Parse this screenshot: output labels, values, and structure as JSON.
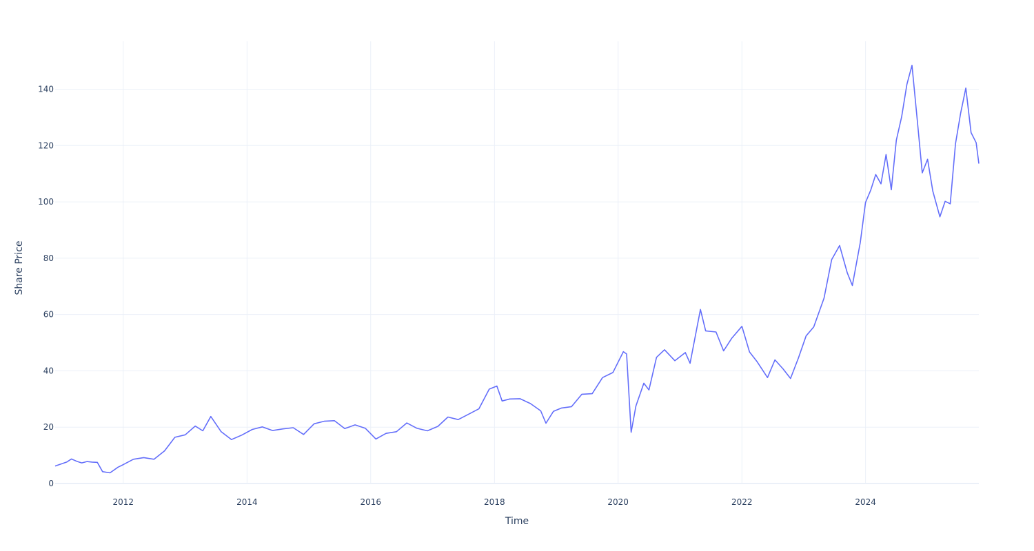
{
  "chart_data": {
    "type": "line",
    "title": "",
    "xlabel": "Time",
    "ylabel": "Share Price",
    "x_ticks": [
      "2012",
      "2014",
      "2016",
      "2018",
      "2020",
      "2022",
      "2024"
    ],
    "y_ticks": [
      0,
      20,
      40,
      60,
      80,
      100,
      120,
      140
    ],
    "xlim": [
      "2010-11-25",
      "2025-10-31"
    ],
    "ylim": [
      0,
      157
    ],
    "grid": true,
    "line_color": "#636efa",
    "series": [
      {
        "values": [
          [
            "2010-11-25",
            6.2
          ],
          [
            "2011-02-01",
            7.6
          ],
          [
            "2011-03-01",
            8.7
          ],
          [
            "2011-04-01",
            7.9
          ],
          [
            "2011-05-01",
            7.3
          ],
          [
            "2011-06-01",
            7.8
          ],
          [
            "2011-07-01",
            7.6
          ],
          [
            "2011-08-01",
            7.5
          ],
          [
            "2011-09-01",
            4.2
          ],
          [
            "2011-10-15",
            3.8
          ],
          [
            "2011-12-01",
            5.8
          ],
          [
            "2012-01-01",
            6.7
          ],
          [
            "2012-03-01",
            8.6
          ],
          [
            "2012-05-01",
            9.2
          ],
          [
            "2012-07-01",
            8.6
          ],
          [
            "2012-09-01",
            11.6
          ],
          [
            "2012-11-01",
            16.4
          ],
          [
            "2013-01-01",
            17.3
          ],
          [
            "2013-03-01",
            20.4
          ],
          [
            "2013-04-15",
            18.7
          ],
          [
            "2013-06-01",
            23.8
          ],
          [
            "2013-08-01",
            18.4
          ],
          [
            "2013-10-01",
            15.6
          ],
          [
            "2013-12-01",
            17.2
          ],
          [
            "2014-02-01",
            19.2
          ],
          [
            "2014-04-01",
            20.1
          ],
          [
            "2014-06-01",
            18.8
          ],
          [
            "2014-08-01",
            19.4
          ],
          [
            "2014-10-01",
            19.8
          ],
          [
            "2014-12-01",
            17.4
          ],
          [
            "2015-02-01",
            21.2
          ],
          [
            "2015-04-01",
            22.1
          ],
          [
            "2015-06-01",
            22.3
          ],
          [
            "2015-08-01",
            19.5
          ],
          [
            "2015-10-01",
            20.8
          ],
          [
            "2015-12-01",
            19.6
          ],
          [
            "2016-02-01",
            15.8
          ],
          [
            "2016-04-01",
            17.8
          ],
          [
            "2016-06-01",
            18.4
          ],
          [
            "2016-08-01",
            21.5
          ],
          [
            "2016-10-01",
            19.6
          ],
          [
            "2016-12-01",
            18.7
          ],
          [
            "2017-02-01",
            20.3
          ],
          [
            "2017-04-01",
            23.6
          ],
          [
            "2017-06-01",
            22.7
          ],
          [
            "2017-08-01",
            24.6
          ],
          [
            "2017-10-01",
            26.5
          ],
          [
            "2017-12-01",
            33.5
          ],
          [
            "2018-01-15",
            34.6
          ],
          [
            "2018-02-15",
            29.3
          ],
          [
            "2018-04-01",
            30.0
          ],
          [
            "2018-06-01",
            30.1
          ],
          [
            "2018-08-01",
            28.4
          ],
          [
            "2018-10-01",
            25.8
          ],
          [
            "2018-11-01",
            21.4
          ],
          [
            "2018-12-15",
            25.6
          ],
          [
            "2019-02-01",
            26.8
          ],
          [
            "2019-04-01",
            27.3
          ],
          [
            "2019-06-01",
            31.7
          ],
          [
            "2019-08-01",
            31.9
          ],
          [
            "2019-10-01",
            37.6
          ],
          [
            "2019-12-01",
            39.4
          ],
          [
            "2020-02-01",
            46.8
          ],
          [
            "2020-02-20",
            46.0
          ],
          [
            "2020-03-18",
            18.2
          ],
          [
            "2020-04-15",
            27.5
          ],
          [
            "2020-06-01",
            35.6
          ],
          [
            "2020-07-01",
            33.2
          ],
          [
            "2020-08-15",
            44.8
          ],
          [
            "2020-10-01",
            47.5
          ],
          [
            "2020-12-01",
            43.6
          ],
          [
            "2021-02-01",
            46.5
          ],
          [
            "2021-03-01",
            42.7
          ],
          [
            "2021-05-01",
            61.8
          ],
          [
            "2021-06-01",
            54.2
          ],
          [
            "2021-08-01",
            53.8
          ],
          [
            "2021-09-15",
            47.1
          ],
          [
            "2021-11-01",
            51.5
          ],
          [
            "2022-01-01",
            55.8
          ],
          [
            "2022-02-15",
            46.7
          ],
          [
            "2022-04-01",
            43.2
          ],
          [
            "2022-06-01",
            37.6
          ],
          [
            "2022-07-15",
            43.9
          ],
          [
            "2022-09-01",
            40.7
          ],
          [
            "2022-10-15",
            37.3
          ],
          [
            "2022-12-01",
            44.6
          ],
          [
            "2023-01-15",
            52.4
          ],
          [
            "2023-03-01",
            55.6
          ],
          [
            "2023-05-01",
            65.8
          ],
          [
            "2023-06-15",
            79.5
          ],
          [
            "2023-08-01",
            84.5
          ],
          [
            "2023-09-15",
            74.8
          ],
          [
            "2023-10-15",
            70.3
          ],
          [
            "2023-12-01",
            85.6
          ],
          [
            "2024-01-01",
            99.8
          ],
          [
            "2024-02-01",
            104.2
          ],
          [
            "2024-03-01",
            109.7
          ],
          [
            "2024-04-01",
            106.4
          ],
          [
            "2024-05-01",
            116.8
          ],
          [
            "2024-06-01",
            104.3
          ],
          [
            "2024-07-01",
            121.9
          ],
          [
            "2024-08-01",
            130.2
          ],
          [
            "2024-09-01",
            141.7
          ],
          [
            "2024-10-01",
            148.5
          ],
          [
            "2024-11-01",
            129.2
          ],
          [
            "2024-12-01",
            110.3
          ],
          [
            "2025-01-01",
            115.1
          ],
          [
            "2025-02-01",
            103.8
          ],
          [
            "2025-03-15",
            94.7
          ],
          [
            "2025-04-15",
            100.2
          ],
          [
            "2025-05-15",
            99.3
          ],
          [
            "2025-06-15",
            120.6
          ],
          [
            "2025-07-15",
            131.4
          ],
          [
            "2025-08-15",
            140.4
          ],
          [
            "2025-09-15",
            124.6
          ],
          [
            "2025-10-15",
            121.0
          ],
          [
            "2025-10-31",
            113.6
          ]
        ]
      }
    ]
  }
}
